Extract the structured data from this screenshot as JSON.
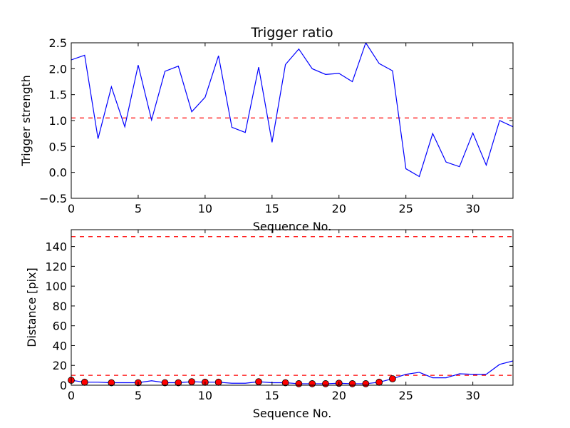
{
  "chart_data": [
    {
      "type": "line",
      "title": "Trigger ratio",
      "xlabel": "Sequence No.",
      "ylabel": "Trigger strength",
      "xlim": [
        0,
        33
      ],
      "ylim": [
        -0.5,
        2.5
      ],
      "xticks": [
        "0",
        "5",
        "10",
        "15",
        "20",
        "25",
        "30"
      ],
      "yticks": [
        "−0.5",
        "0.0",
        "0.5",
        "1.0",
        "1.5",
        "2.0",
        "2.5"
      ],
      "grid": false,
      "series": [
        {
          "color": "#0000ff",
          "x": [
            0,
            1,
            2,
            3,
            4,
            5,
            6,
            7,
            8,
            9,
            10,
            11,
            12,
            13,
            14,
            15,
            16,
            17,
            18,
            19,
            20,
            21,
            22,
            23,
            24,
            25,
            26,
            27,
            28,
            29,
            30,
            31,
            32,
            33
          ],
          "y": [
            2.17,
            2.26,
            0.65,
            1.65,
            0.88,
            2.07,
            1.01,
            1.95,
            2.05,
            1.17,
            1.45,
            2.25,
            0.87,
            0.77,
            2.03,
            0.58,
            2.08,
            2.38,
            2.0,
            1.89,
            1.91,
            1.75,
            2.5,
            2.1,
            1.96,
            0.07,
            -0.08,
            0.75,
            0.2,
            0.11,
            0.76,
            0.14,
            1.0,
            0.88
          ]
        }
      ],
      "reference_lines": [
        {
          "y": 1.05,
          "color": "#ff0000",
          "style": "dashed"
        }
      ]
    },
    {
      "type": "line",
      "title": "",
      "xlabel": "Sequence No.",
      "ylabel": "Distance [pix]",
      "xlim": [
        0,
        33
      ],
      "ylim": [
        0,
        157
      ],
      "xticks": [
        "0",
        "5",
        "10",
        "15",
        "20",
        "25",
        "30"
      ],
      "yticks": [
        "0",
        "20",
        "40",
        "60",
        "80",
        "100",
        "120",
        "140"
      ],
      "grid": false,
      "series": [
        {
          "color": "#0000ff",
          "x": [
            0,
            1,
            2,
            3,
            4,
            5,
            6,
            7,
            8,
            9,
            10,
            11,
            12,
            13,
            14,
            15,
            16,
            17,
            18,
            19,
            20,
            21,
            22,
            23,
            24,
            25,
            26,
            27,
            28,
            29,
            30,
            31,
            32,
            33
          ],
          "y": [
            5,
            3,
            3,
            2.5,
            2.5,
            2.5,
            4.5,
            2.5,
            2.5,
            3.5,
            3,
            3,
            2,
            2,
            3.5,
            2.5,
            2.5,
            1.5,
            1.5,
            1.5,
            2,
            1.5,
            1.5,
            3,
            6.5,
            11,
            13,
            7.5,
            7.5,
            11.5,
            11,
            11,
            21,
            24.5
          ]
        },
        {
          "color": "#ff0000",
          "marker": "circle",
          "x": [
            0,
            1,
            3,
            5,
            7,
            8,
            9,
            10,
            11,
            14,
            16,
            17,
            18,
            19,
            20,
            21,
            22,
            23,
            24
          ],
          "y": [
            5,
            3,
            2.5,
            2.5,
            2.5,
            2.5,
            3.5,
            3,
            3,
            3.5,
            2.5,
            1.5,
            1.5,
            1.5,
            2,
            1.5,
            1.5,
            3,
            6.5
          ]
        }
      ],
      "reference_lines": [
        {
          "y": 150,
          "color": "#ff0000",
          "style": "dashed"
        },
        {
          "y": 10,
          "color": "#ff0000",
          "style": "dashed"
        }
      ]
    }
  ]
}
